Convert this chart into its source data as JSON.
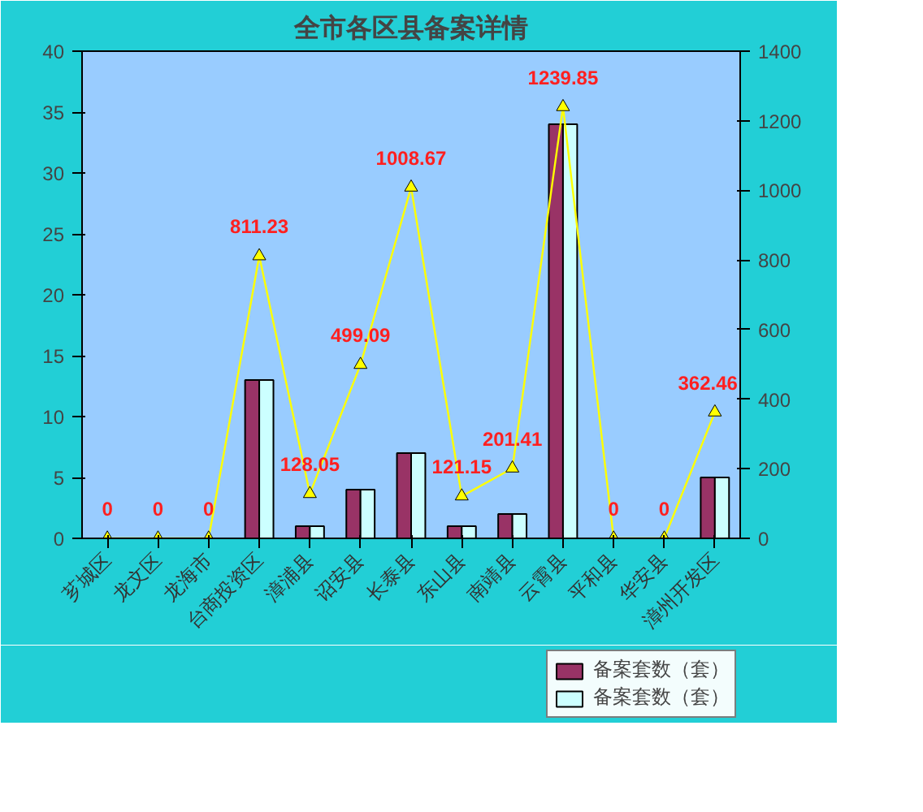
{
  "chart_data": {
    "type": "bar",
    "title": "全市各区县备案详情",
    "categories": [
      "芗城区",
      "龙文区",
      "龙海市",
      "台商投资区",
      "漳浦县",
      "诏安县",
      "长泰县",
      "东山县",
      "南靖县",
      "云霄县",
      "平和县",
      "华安县",
      "漳州开发区"
    ],
    "series": [
      {
        "name": "备案套数（套）",
        "color": "#993366",
        "values": [
          0,
          0,
          0,
          13,
          1,
          4,
          7,
          1,
          2,
          34,
          0,
          0,
          5
        ]
      },
      {
        "name": "备案套数（套）",
        "color": "#ccffff",
        "values": [
          0,
          0,
          0,
          13,
          1,
          4,
          7,
          1,
          2,
          34,
          0,
          0,
          5
        ]
      },
      {
        "type": "line",
        "axis": "y2",
        "color": "#ffff00",
        "marker": "triangle",
        "values": [
          0,
          0,
          0,
          811.23,
          128.05,
          499.09,
          1008.67,
          121.15,
          201.41,
          1239.85,
          0,
          0,
          362.46
        ],
        "value_labels": [
          "0",
          "0",
          "0",
          "811.23",
          "128.05",
          "499.09",
          "1008.67",
          "121.15",
          "201.41",
          "1239.85",
          "0",
          "0",
          "362.46"
        ]
      }
    ],
    "ylim": [
      0,
      40
    ],
    "yticks": [
      0,
      5,
      10,
      15,
      20,
      25,
      30,
      35,
      40
    ],
    "y2lim": [
      0,
      1400
    ],
    "y2ticks": [
      0,
      200,
      400,
      600,
      800,
      1000,
      1200,
      1400
    ],
    "legend": "bottom right"
  }
}
